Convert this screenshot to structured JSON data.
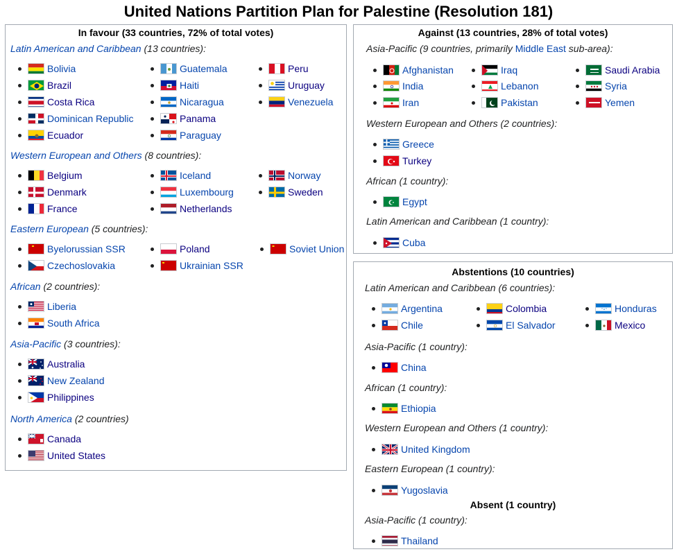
{
  "title": "United Nations Partition Plan for Palestine (Resolution 181)",
  "favour": {
    "header": "In favour (33 countries, 72% of total votes)",
    "latin": {
      "label": "Latin American and Caribbean",
      "suffix": " (13 countries):",
      "items": [
        "Bolivia",
        "Brazil",
        "Costa Rica",
        "Dominican Republic",
        "Ecuador",
        "Guatemala",
        "Haiti",
        "Nicaragua",
        "Panama",
        "Paraguay",
        "Peru",
        "Uruguay",
        "Venezuela"
      ]
    },
    "western": {
      "label": "Western European and Others",
      "suffix": " (8 countries):",
      "items": [
        "Belgium",
        "Denmark",
        "France",
        "Iceland",
        "Luxembourg",
        "Netherlands",
        "Norway",
        "Sweden"
      ]
    },
    "eastern": {
      "label": "Eastern European",
      "suffix": " (5 countries):",
      "items": [
        "Byelorussian SSR",
        "Czechoslovakia",
        "Poland",
        "Ukrainian SSR",
        "Soviet Union"
      ]
    },
    "african": {
      "label": "African",
      "suffix": " (2 countries):",
      "items": [
        "Liberia",
        "South Africa"
      ]
    },
    "asia": {
      "label": "Asia-Pacific",
      "suffix": " (3 countries):",
      "items": [
        "Australia",
        "New Zealand",
        "Philippines"
      ]
    },
    "north": {
      "label": "North America",
      "suffix": " (2 countries)",
      "items": [
        "Canada",
        "United States"
      ]
    }
  },
  "against": {
    "header": "Against (13 countries, 28% of total votes)",
    "asia": {
      "prefix": "Asia-Pacific (9 countries, primarily ",
      "link": "Middle East",
      "suffix": " sub-area):",
      "items": [
        "Afghanistan",
        "India",
        "Iran",
        "Iraq",
        "Lebanon",
        "Pakistan",
        "Saudi Arabia",
        "Syria",
        "Yemen"
      ]
    },
    "western": {
      "label": "Western European and Others (2 countries):",
      "items": [
        "Greece",
        "Turkey"
      ]
    },
    "african": {
      "label": "African (1 country):",
      "items": [
        "Egypt"
      ]
    },
    "latin": {
      "label": "Latin American and Caribbean (1 country):",
      "items": [
        "Cuba"
      ]
    }
  },
  "abstentions": {
    "header": "Abstentions (10 countries)",
    "latin": {
      "label": "Latin American and Caribbean (6 countries):",
      "items": [
        "Argentina",
        "Chile",
        "Colombia",
        "El Salvador",
        "Honduras",
        "Mexico"
      ]
    },
    "asia": {
      "label": "Asia-Pacific (1 country):",
      "items": [
        "China"
      ]
    },
    "african": {
      "label": "African (1 country):",
      "items": [
        "Ethiopia"
      ]
    },
    "western": {
      "label": "Western European and Others (1 country):",
      "items": [
        "United Kingdom"
      ]
    },
    "eastern": {
      "label": "Eastern European (1 country):",
      "items": [
        "Yugoslavia"
      ]
    }
  },
  "absent": {
    "header": "Absent (1 country)",
    "asia": {
      "label": "Asia-Pacific (1 country):",
      "items": [
        "Thailand"
      ]
    }
  }
}
